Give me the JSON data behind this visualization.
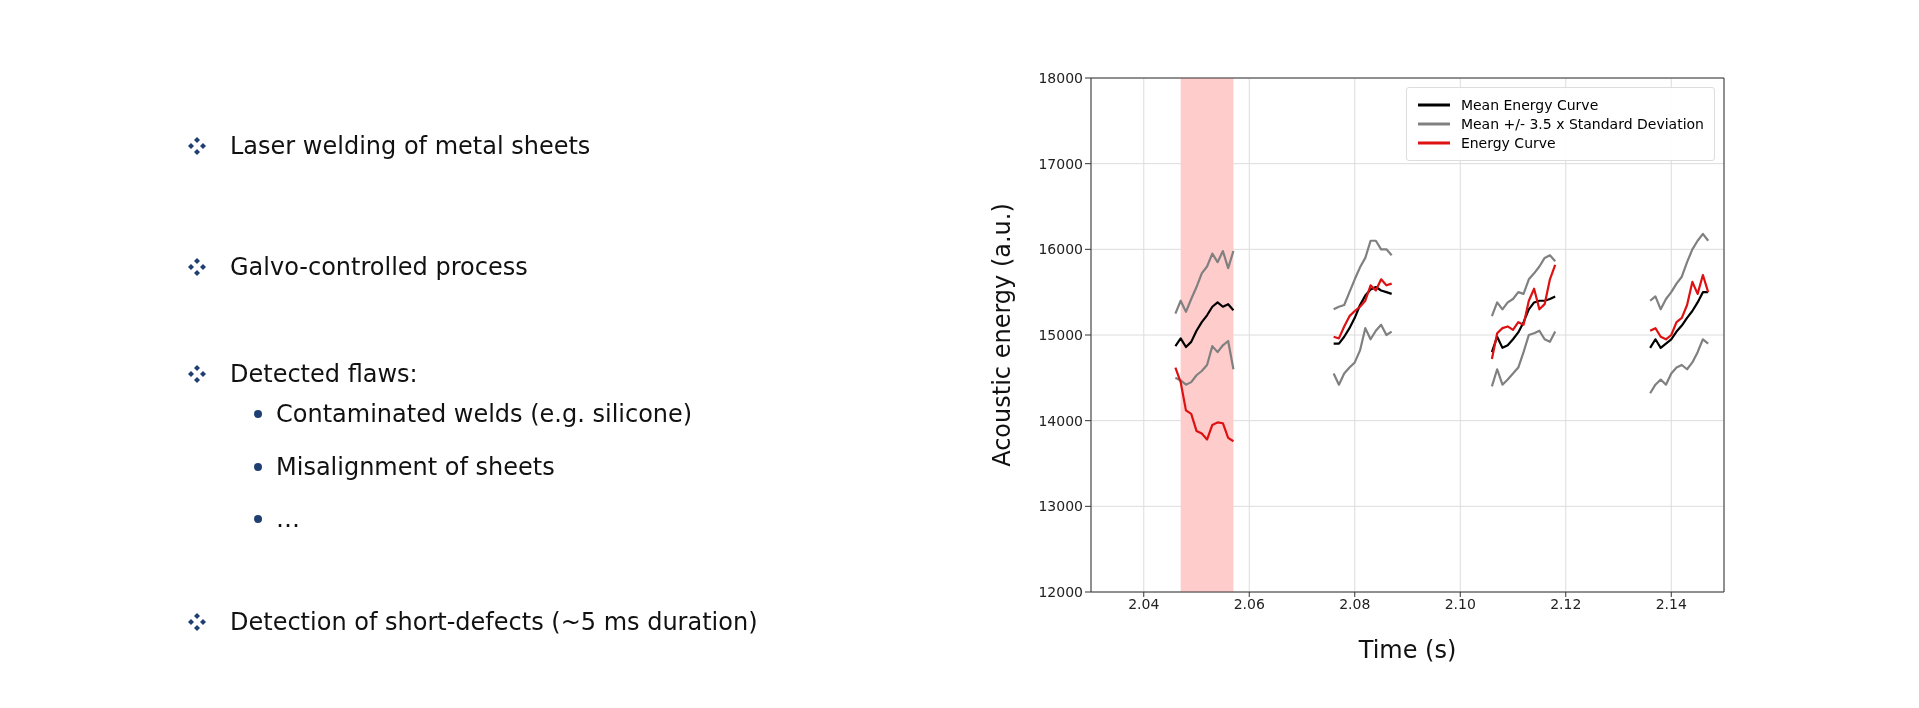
{
  "chart_data": {
    "type": "line",
    "xlabel": "Time (s)",
    "ylabel": "Acoustic energy (a.u.)",
    "annotations": [
      "Laser welding of metal sheets",
      "Galvo-controlled process",
      "Detected flaws:",
      "Contaminated welds (e.g. silicone)",
      "Misalignment of sheets",
      "…",
      "Detection of short-defects (~5 ms duration)"
    ],
    "x": [
      2.046,
      2.047,
      2.048,
      2.049,
      2.05,
      2.051,
      2.052,
      2.053,
      2.054,
      2.055,
      2.056,
      2.057,
      2.0665,
      2.076,
      2.077,
      2.078,
      2.079,
      2.08,
      2.081,
      2.082,
      2.083,
      2.084,
      2.085,
      2.086,
      2.087,
      2.0965,
      2.106,
      2.107,
      2.108,
      2.109,
      2.11,
      2.111,
      2.112,
      2.113,
      2.114,
      2.115,
      2.116,
      2.117,
      2.118,
      2.1265,
      2.136,
      2.137,
      2.138,
      2.139,
      2.14,
      2.141,
      2.142,
      2.143,
      2.144,
      2.145,
      2.146,
      2.147
    ],
    "series": [
      {
        "name": "Mean Energy Curve",
        "color": "#000000",
        "values": [
          14870,
          14960,
          14860,
          14920,
          15050,
          15150,
          15230,
          15330,
          15380,
          15330,
          15360,
          15290,
          null,
          14900,
          14900,
          14980,
          15080,
          15200,
          15350,
          15460,
          15530,
          15560,
          15520,
          15500,
          15480,
          null,
          14800,
          14980,
          14850,
          14880,
          14950,
          15030,
          15150,
          15300,
          15380,
          15400,
          15400,
          15420,
          15450,
          null,
          14850,
          14950,
          14850,
          14900,
          14950,
          15040,
          15110,
          15200,
          15280,
          15380,
          15500,
          15500
        ]
      },
      {
        "name": "Mean +/- 3.5 x Standard Deviation",
        "color": "#808080",
        "values": [
          15250,
          15400,
          15270,
          15420,
          15560,
          15720,
          15800,
          15950,
          15850,
          15980,
          15780,
          15980,
          null,
          15300,
          15330,
          15350,
          15500,
          15650,
          15790,
          15900,
          16100,
          16100,
          16000,
          16000,
          15930,
          null,
          15220,
          15380,
          15300,
          15380,
          15420,
          15500,
          15480,
          15650,
          15720,
          15800,
          15900,
          15930,
          15860,
          null,
          15400,
          15450,
          15300,
          15420,
          15500,
          15600,
          15680,
          15850,
          16000,
          16100,
          16180,
          16100
        ]
      },
      {
        "color": "#808080",
        "values": [
          14500,
          14470,
          14420,
          14450,
          14530,
          14580,
          14650,
          14870,
          14800,
          14880,
          14930,
          14600,
          null,
          14550,
          14420,
          14550,
          14620,
          14680,
          14820,
          15080,
          14950,
          15050,
          15120,
          15000,
          15040,
          null,
          14400,
          14600,
          14420,
          14480,
          14550,
          14620,
          14800,
          15000,
          15020,
          15050,
          14950,
          14920,
          15040,
          null,
          14320,
          14420,
          14480,
          14420,
          14550,
          14620,
          14650,
          14600,
          14680,
          14800,
          14950,
          14900
        ]
      },
      {
        "name": "Energy Curve",
        "color": "#dd1111",
        "values": [
          14620,
          14450,
          14120,
          14080,
          13880,
          13850,
          13780,
          13950,
          13980,
          13970,
          13800,
          13760,
          null,
          14980,
          14960,
          15100,
          15220,
          15280,
          15330,
          15400,
          15580,
          15520,
          15650,
          15580,
          15600,
          null,
          14720,
          15020,
          15080,
          15100,
          15060,
          15150,
          15120,
          15400,
          15540,
          15300,
          15360,
          15650,
          15820,
          null,
          15050,
          15080,
          14980,
          14950,
          15000,
          15150,
          15200,
          15350,
          15620,
          15480,
          15700,
          15500
        ]
      }
    ],
    "xlim": [
      2.03,
      2.15
    ],
    "xticks": [
      2.04,
      2.06,
      2.08,
      {
        "value": 2.1,
        "label": "2.10"
      },
      2.12,
      2.14
    ],
    "ylim": [
      12000,
      18000
    ],
    "yticks": [
      12000,
      13000,
      14000,
      15000,
      16000,
      17000,
      18000
    ],
    "bands": [
      {
        "axis": "x",
        "from": 2.047,
        "to": 2.057,
        "color": "#ffcccc"
      }
    ],
    "grid": true,
    "legend": "top right",
    "marker": "none",
    "line_style": "solid"
  }
}
